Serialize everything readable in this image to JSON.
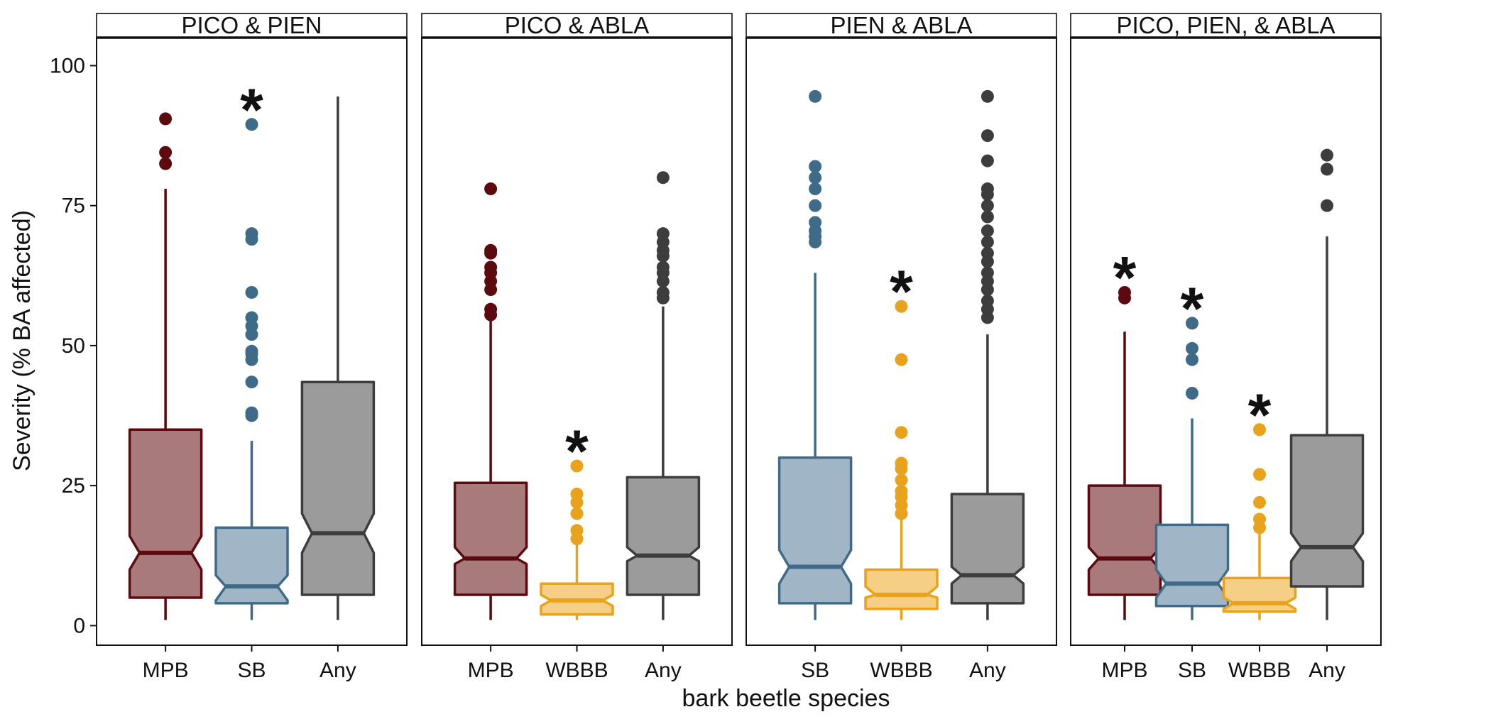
{
  "chart_data": {
    "type": "boxplot",
    "notched": true,
    "ylabel": "Severity (% BA affected)",
    "xlabel": "bark beetle species",
    "ylim": [
      -3.5,
      105
    ],
    "yticks": [
      0,
      25,
      50,
      75,
      100
    ],
    "grid": false,
    "facet_layout": "1 row x 4 panels, strip labels on top",
    "colors": {
      "MPB": {
        "fill": "#a87a7c",
        "stroke": "#5c0a0d"
      },
      "SB": {
        "fill": "#a0b5c5",
        "stroke": "#3f6b89"
      },
      "WBBB": {
        "fill": "#f6cf86",
        "stroke": "#e9a21c"
      },
      "Any": {
        "fill": "#9b9b9b",
        "stroke": "#3d3d3d"
      }
    },
    "panels": [
      {
        "strip": "PICO & PIEN",
        "categories": [
          "MPB",
          "SB",
          "Any"
        ],
        "boxes": [
          {
            "species": "MPB",
            "min": 1,
            "q1": 5,
            "median": 13,
            "q3": 35,
            "max": 78,
            "notch_low": 10,
            "notch_high": 16,
            "outliers": [
              82.5,
              84.5,
              90.5
            ],
            "significant": false
          },
          {
            "species": "SB",
            "min": 1,
            "q1": 4,
            "median": 7,
            "q3": 17.5,
            "max": 33,
            "notch_low": 4.5,
            "notch_high": 9,
            "outliers": [
              37.5,
              38,
              43.5,
              47.5,
              48.5,
              49,
              52,
              53.5,
              55,
              59.5,
              69,
              70,
              89.5
            ],
            "significant": true
          },
          {
            "species": "Any",
            "min": 1,
            "q1": 5.5,
            "median": 16.5,
            "q3": 43.5,
            "max": 94.5,
            "notch_low": 13,
            "notch_high": 20,
            "outliers": [],
            "significant": false
          }
        ]
      },
      {
        "strip": "PICO & ABLA",
        "categories": [
          "MPB",
          "WBBB",
          "Any"
        ],
        "boxes": [
          {
            "species": "MPB",
            "min": 1,
            "q1": 5.5,
            "median": 12,
            "q3": 25.5,
            "max": 55,
            "notch_low": 11,
            "notch_high": 14,
            "outliers": [
              55.5,
              56.5,
              60,
              61.5,
              63,
              64,
              66.5,
              67,
              78
            ],
            "significant": false
          },
          {
            "species": "WBBB",
            "min": 1,
            "q1": 2,
            "median": 4.5,
            "q3": 7.5,
            "max": 15,
            "notch_low": 3.5,
            "notch_high": 5.5,
            "outliers": [
              15.5,
              17,
              20,
              22,
              23.5,
              28.5
            ],
            "significant": true
          },
          {
            "species": "Any",
            "min": 1,
            "q1": 5.5,
            "median": 12.5,
            "q3": 26.5,
            "max": 57,
            "notch_low": 11.5,
            "notch_high": 14,
            "outliers": [
              58.5,
              59.5,
              61.5,
              63,
              64,
              66,
              67,
              68.5,
              70,
              80
            ],
            "significant": false
          }
        ]
      },
      {
        "strip": "PIEN & ABLA",
        "categories": [
          "SB",
          "WBBB",
          "Any"
        ],
        "boxes": [
          {
            "species": "SB",
            "min": 1,
            "q1": 4,
            "median": 10.5,
            "q3": 30,
            "max": 63,
            "notch_low": 7.5,
            "notch_high": 13.5,
            "outliers": [
              68.5,
              69.5,
              70.5,
              72,
              75,
              78,
              80,
              82,
              94.5
            ],
            "significant": false
          },
          {
            "species": "WBBB",
            "min": 1,
            "q1": 3,
            "median": 5.5,
            "q3": 10,
            "max": 19.5,
            "notch_low": 5,
            "notch_high": 7,
            "outliers": [
              20,
              21.5,
              23,
              24,
              26,
              28,
              29,
              34.5,
              47.5,
              57
            ],
            "significant": true
          },
          {
            "species": "Any",
            "min": 1,
            "q1": 4,
            "median": 9,
            "q3": 23.5,
            "max": 52,
            "notch_low": 7.5,
            "notch_high": 10.5,
            "outliers": [
              55,
              56.5,
              58,
              60,
              61.5,
              63,
              65,
              66.5,
              68.5,
              70.5,
              73,
              75,
              77,
              78,
              83,
              87.5,
              94.5
            ],
            "significant": false
          }
        ]
      },
      {
        "strip": "PICO, PIEN, & ABLA",
        "categories": [
          "MPB",
          "SB",
          "WBBB",
          "Any"
        ],
        "boxes": [
          {
            "species": "MPB",
            "min": 1,
            "q1": 5.5,
            "median": 12,
            "q3": 25,
            "max": 52.5,
            "notch_low": 10,
            "notch_high": 14,
            "outliers": [
              58.5,
              59.5
            ],
            "significant": true
          },
          {
            "species": "SB",
            "min": 1,
            "q1": 3.5,
            "median": 7.5,
            "q3": 18,
            "max": 37,
            "notch_low": 5,
            "notch_high": 10,
            "outliers": [
              41.5,
              47.5,
              49.5,
              54
            ],
            "significant": true
          },
          {
            "species": "WBBB",
            "min": 1,
            "q1": 2.5,
            "median": 4,
            "q3": 8.5,
            "max": 17,
            "notch_low": 3,
            "notch_high": 5,
            "outliers": [
              17.5,
              19,
              22,
              27,
              35
            ],
            "significant": true
          },
          {
            "species": "Any",
            "min": 1,
            "q1": 7,
            "median": 14,
            "q3": 34,
            "max": 69.5,
            "notch_low": 11.5,
            "notch_high": 16.5,
            "outliers": [
              75,
              81.5,
              84
            ],
            "significant": false
          }
        ]
      }
    ],
    "significance_marker": "*"
  }
}
